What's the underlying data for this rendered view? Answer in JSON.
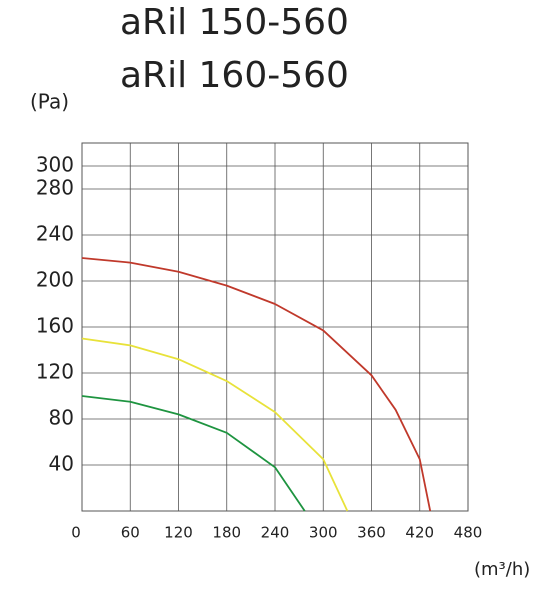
{
  "chart_data": {
    "type": "line",
    "title": "aRil 150-560",
    "subtitle": "aRil 160-560",
    "y_label": "(Pa)",
    "x_label": "(m³/h)",
    "xlim": [
      0,
      480
    ],
    "xticks": [
      0,
      60,
      120,
      180,
      240,
      300,
      360,
      420,
      480
    ],
    "ylim": [
      0,
      320
    ],
    "yticks": [
      40,
      80,
      120,
      160,
      200,
      240,
      280,
      300
    ],
    "grid": true,
    "series": [
      {
        "color": "#c0392b",
        "x": [
          0,
          60,
          120,
          180,
          240,
          300,
          360,
          390,
          420,
          433
        ],
        "values": [
          220,
          216,
          208,
          196,
          180,
          157,
          118,
          88,
          45,
          0
        ]
      },
      {
        "color": "#e8e23a",
        "x": [
          0,
          60,
          120,
          180,
          240,
          300,
          330
        ],
        "values": [
          150,
          144,
          132,
          113,
          86,
          45,
          0
        ]
      },
      {
        "color": "#1e9440",
        "x": [
          0,
          60,
          120,
          180,
          240,
          277
        ],
        "values": [
          100,
          95,
          84,
          68,
          38,
          0
        ]
      }
    ]
  }
}
